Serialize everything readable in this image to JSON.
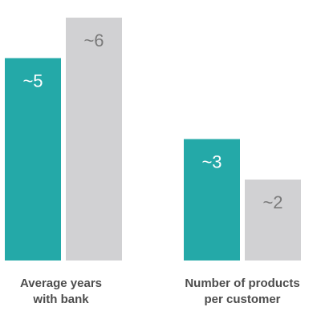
{
  "chart_data": {
    "type": "bar",
    "categories": [
      [
        "Average years",
        "with bank"
      ],
      [
        "Number of products",
        "per customer"
      ]
    ],
    "series": [
      {
        "values": [
          5,
          3
        ],
        "labels": [
          "~5",
          "~3"
        ],
        "color": "#24a9a8",
        "label_color": "#ffffff"
      },
      {
        "values": [
          6,
          2
        ],
        "labels": [
          "~6",
          "~2"
        ],
        "color": "#d1d1d3",
        "label_color": "#7a7a7a"
      }
    ],
    "title": "",
    "xlabel": "",
    "ylabel": "",
    "ylim": [
      0,
      6
    ],
    "grid": false,
    "legend": "none"
  }
}
